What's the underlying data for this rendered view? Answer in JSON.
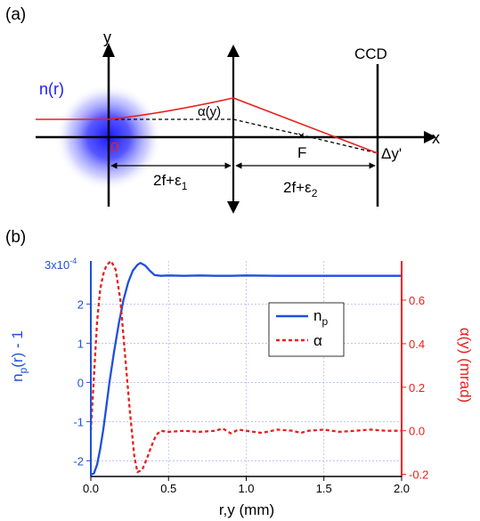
{
  "panel_a": {
    "label": "(a)",
    "axis_x": "x",
    "axis_y": "y",
    "medium_label": "n(r)",
    "origin_label": "0",
    "focus_label": "F",
    "angle_label": "α(y)",
    "ccd_label": "CCD",
    "displacement_label": "Δy'",
    "distance_1": "2f+ε",
    "distance_1_sub": "1",
    "distance_2": "2f+ε",
    "distance_2_sub": "2",
    "colors": {
      "medium": "#1a1aff",
      "ray": "#e8201c",
      "origin": "#e8201c"
    }
  },
  "panel_b": {
    "label": "(b)",
    "chart_data": {
      "type": "line",
      "xlabel": "r,y (mm)",
      "ylabel_left": "n_p(r) - 1",
      "ylabel_right": "α(y) (mrad)",
      "xlim": [
        0,
        2
      ],
      "ylim_left": [
        -2.4,
        3.1
      ],
      "ylim_right": [
        -0.21,
        0.78
      ],
      "left_scale_note": "3x10",
      "left_scale_exp": "-4",
      "x_ticks": [
        "0.0",
        "0.5",
        "1.0",
        "1.5",
        "2.0"
      ],
      "y_ticks_left": [
        "-2",
        "-1",
        "0",
        "1",
        "2"
      ],
      "y_ticks_right": [
        "-0.2",
        "0.0",
        "0.2",
        "0.4",
        "0.6"
      ],
      "grid": true,
      "legend_position": "center-right",
      "series": [
        {
          "name": "n",
          "name_sub": "p",
          "axis": "left",
          "color": "#1f4fe0",
          "style": "solid",
          "points": [
            [
              0.0,
              -2.35
            ],
            [
              0.02,
              -2.32
            ],
            [
              0.04,
              -2.1
            ],
            [
              0.06,
              -1.7
            ],
            [
              0.08,
              -1.2
            ],
            [
              0.1,
              -0.6
            ],
            [
              0.12,
              0.0
            ],
            [
              0.15,
              0.8
            ],
            [
              0.18,
              1.5
            ],
            [
              0.21,
              2.1
            ],
            [
              0.24,
              2.55
            ],
            [
              0.27,
              2.85
            ],
            [
              0.3,
              3.0
            ],
            [
              0.32,
              3.05
            ],
            [
              0.35,
              2.98
            ],
            [
              0.38,
              2.85
            ],
            [
              0.41,
              2.74
            ],
            [
              0.45,
              2.72
            ],
            [
              0.5,
              2.73
            ],
            [
              0.6,
              2.72
            ],
            [
              0.7,
              2.73
            ],
            [
              0.8,
              2.72
            ],
            [
              0.9,
              2.72
            ],
            [
              1.0,
              2.73
            ],
            [
              1.2,
              2.72
            ],
            [
              1.4,
              2.72
            ],
            [
              1.6,
              2.72
            ],
            [
              1.8,
              2.72
            ],
            [
              2.0,
              2.72
            ]
          ]
        },
        {
          "name": "α",
          "axis": "right",
          "color": "#e8201c",
          "style": "dashed",
          "points": [
            [
              0.0,
              0.0
            ],
            [
              0.02,
              0.25
            ],
            [
              0.04,
              0.5
            ],
            [
              0.06,
              0.65
            ],
            [
              0.08,
              0.72
            ],
            [
              0.1,
              0.76
            ],
            [
              0.13,
              0.78
            ],
            [
              0.16,
              0.74
            ],
            [
              0.19,
              0.6
            ],
            [
              0.22,
              0.35
            ],
            [
              0.25,
              0.1
            ],
            [
              0.28,
              -0.12
            ],
            [
              0.3,
              -0.19
            ],
            [
              0.33,
              -0.18
            ],
            [
              0.36,
              -0.13
            ],
            [
              0.39,
              -0.07
            ],
            [
              0.42,
              -0.02
            ],
            [
              0.45,
              0.0
            ],
            [
              0.5,
              -0.005
            ],
            [
              0.6,
              0.0
            ],
            [
              0.7,
              -0.005
            ],
            [
              0.8,
              0.0
            ],
            [
              0.85,
              0.01
            ],
            [
              0.9,
              -0.012
            ],
            [
              0.95,
              0.005
            ],
            [
              1.0,
              0.0
            ],
            [
              1.1,
              -0.01
            ],
            [
              1.2,
              0.005
            ],
            [
              1.3,
              0.0
            ],
            [
              1.35,
              -0.01
            ],
            [
              1.4,
              0.0
            ],
            [
              1.5,
              0.005
            ],
            [
              1.6,
              -0.005
            ],
            [
              1.7,
              0.0
            ],
            [
              1.8,
              0.005
            ],
            [
              1.9,
              0.0
            ],
            [
              2.0,
              0.0
            ]
          ]
        }
      ]
    }
  }
}
